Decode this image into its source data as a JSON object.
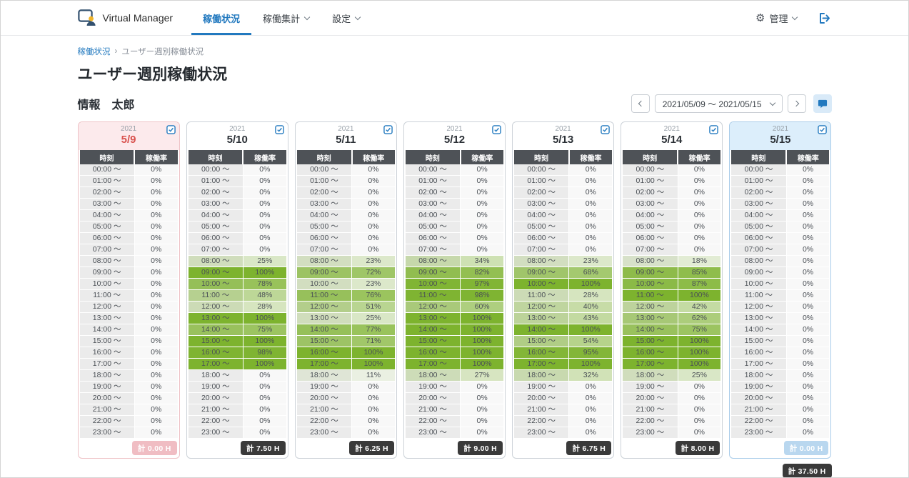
{
  "navbar": {
    "brand": "Virtual Manager",
    "items": [
      {
        "key": "operation-status",
        "label": "稼働状況",
        "active": true,
        "has_dropdown": false
      },
      {
        "key": "operation-summary",
        "label": "稼働集計",
        "active": false,
        "has_dropdown": true
      },
      {
        "key": "settings",
        "label": "設定",
        "active": false,
        "has_dropdown": true
      }
    ],
    "admin_label": "管理"
  },
  "icons": {
    "gear": "⚙",
    "breadcrumb_separator": "›"
  },
  "breadcrumb": {
    "items": [
      "稼働状況",
      "ユーザー週別稼働状況"
    ],
    "separator": "›"
  },
  "page": {
    "title": "ユーザー週別稼働状況",
    "user_name": "情報　太郎"
  },
  "date_nav": {
    "range_label": "2021/05/09 ～ 2021/05/15"
  },
  "table": {
    "col_time": "時刻",
    "col_rate": "稼働率"
  },
  "times": [
    "00:00 ～",
    "01:00 ～",
    "02:00 ～",
    "03:00 ～",
    "04:00 ～",
    "05:00 ～",
    "06:00 ～",
    "07:00 ～",
    "08:00 ～",
    "09:00 ～",
    "10:00 ～",
    "11:00 ～",
    "12:00 ～",
    "13:00 ～",
    "14:00 ～",
    "15:00 ～",
    "16:00 ～",
    "17:00 ～",
    "18:00 ～",
    "19:00 ～",
    "20:00 ～",
    "21:00 ～",
    "22:00 ～",
    "23:00 ～"
  ],
  "days": [
    {
      "year": "2021",
      "date": "5/9",
      "weekday": "sunday",
      "total_label": "計 0.00 H",
      "rates": [
        0,
        0,
        0,
        0,
        0,
        0,
        0,
        0,
        0,
        0,
        0,
        0,
        0,
        0,
        0,
        0,
        0,
        0,
        0,
        0,
        0,
        0,
        0,
        0
      ]
    },
    {
      "year": "2021",
      "date": "5/10",
      "weekday": "weekday",
      "total_label": "計 7.50 H",
      "rates": [
        0,
        0,
        0,
        0,
        0,
        0,
        0,
        0,
        25,
        100,
        78,
        48,
        28,
        100,
        75,
        100,
        98,
        100,
        0,
        0,
        0,
        0,
        0,
        0
      ]
    },
    {
      "year": "2021",
      "date": "5/11",
      "weekday": "weekday",
      "total_label": "計 6.25 H",
      "rates": [
        0,
        0,
        0,
        0,
        0,
        0,
        0,
        0,
        23,
        72,
        23,
        76,
        51,
        25,
        77,
        71,
        100,
        100,
        11,
        0,
        0,
        0,
        0,
        0
      ]
    },
    {
      "year": "2021",
      "date": "5/12",
      "weekday": "weekday",
      "total_label": "計 9.00 H",
      "rates": [
        0,
        0,
        0,
        0,
        0,
        0,
        0,
        0,
        34,
        82,
        97,
        98,
        60,
        100,
        100,
        100,
        100,
        100,
        27,
        0,
        0,
        0,
        0,
        0
      ]
    },
    {
      "year": "2021",
      "date": "5/13",
      "weekday": "weekday",
      "total_label": "計 6.75 H",
      "rates": [
        0,
        0,
        0,
        0,
        0,
        0,
        0,
        0,
        23,
        68,
        100,
        28,
        40,
        43,
        100,
        54,
        95,
        100,
        32,
        0,
        0,
        0,
        0,
        0
      ]
    },
    {
      "year": "2021",
      "date": "5/14",
      "weekday": "weekday",
      "total_label": "計 8.00 H",
      "rates": [
        0,
        0,
        0,
        0,
        0,
        0,
        0,
        0,
        18,
        85,
        87,
        100,
        42,
        62,
        75,
        100,
        100,
        100,
        25,
        0,
        0,
        0,
        0,
        0
      ]
    },
    {
      "year": "2021",
      "date": "5/15",
      "weekday": "saturday",
      "total_label": "計 0.00 H",
      "rates": [
        0,
        0,
        0,
        0,
        0,
        0,
        0,
        0,
        0,
        0,
        0,
        0,
        0,
        0,
        0,
        0,
        0,
        0,
        0,
        0,
        0,
        0,
        0,
        0
      ]
    }
  ],
  "grand_total": "計 37.50 H",
  "colors": {
    "accent_blue": "#2279bf",
    "sunday_red": "#d9534f",
    "rate_green": "#7db32e",
    "badge_dark": "#3a3a3a",
    "sunday_border": "#eec2c6",
    "sunday_header_bg": "#fceaec",
    "sunday_badge_bg": "#f0bdc3",
    "saturday_border": "#a9cce9",
    "saturday_header_bg": "#dceefb",
    "saturday_badge_bg": "#b9d7ef",
    "footer_navy": "#1d3a5f"
  }
}
